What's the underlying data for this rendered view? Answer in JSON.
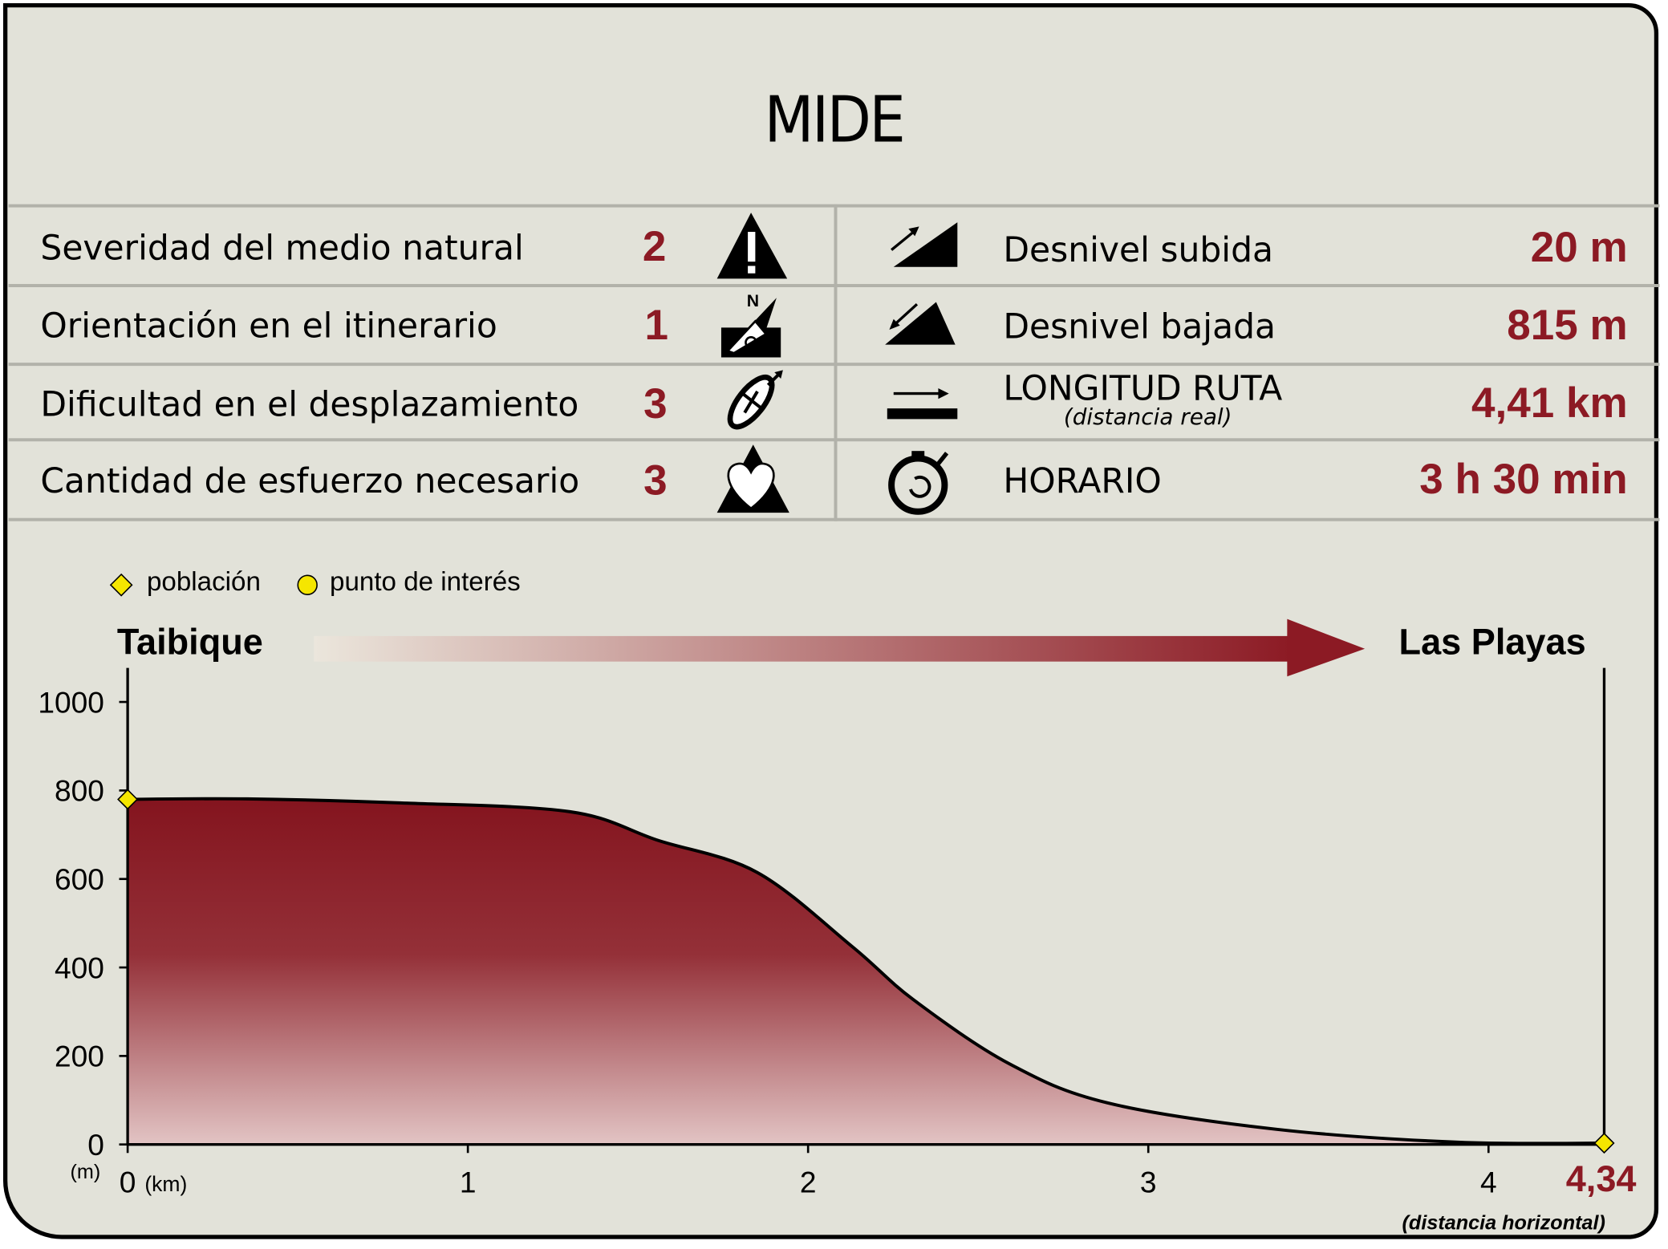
{
  "title": "MIDE",
  "mide": [
    {
      "label": "Severidad del medio natural",
      "value": "2",
      "icon": "warning-mountain-icon"
    },
    {
      "label": "Orientación en el itinerario",
      "value": "1",
      "icon": "compass-orientation-icon"
    },
    {
      "label": "Dificultad en el desplazamiento",
      "value": "3",
      "icon": "footprint-icon"
    },
    {
      "label": "Cantidad de esfuerzo necesario",
      "value": "3",
      "icon": "heart-mountain-icon"
    }
  ],
  "stats": [
    {
      "label": "Desnivel subida",
      "value": "20 m",
      "icon": "ascent-icon"
    },
    {
      "label": "Desnivel bajada",
      "value": "815 m",
      "icon": "descent-icon"
    },
    {
      "label": "LONGITUD RUTA",
      "sublabel": "(distancia real)",
      "value": "4,41 km",
      "icon": "distance-arrow-icon"
    },
    {
      "label": "HORARIO",
      "value": "3 h 30 min",
      "icon": "stopwatch-icon"
    }
  ],
  "legend": {
    "poblacion": "población",
    "punto": "punto de interés"
  },
  "colors": {
    "accent": "#8c1a24",
    "background": "#e2e2d9",
    "marker": "#f5e600"
  },
  "chart_data": {
    "type": "area",
    "start": "Taibique",
    "end": "Las Playas",
    "ylabel": "(m)",
    "xlabel": "(km)",
    "xnote": "(distancia horizontal)",
    "end_distance": "4,34",
    "ylim": [
      0,
      1000
    ],
    "xlim": [
      0,
      4.34
    ],
    "yticks": [
      "0",
      "200",
      "400",
      "600",
      "800",
      "1000"
    ],
    "xticks": [
      "0",
      "1",
      "2",
      "3",
      "4"
    ],
    "x": [
      0,
      0.35,
      0.8,
      1.3,
      1.56,
      1.85,
      2.13,
      2.31,
      2.59,
      2.88,
      3.38,
      3.91,
      4.34
    ],
    "y": [
      780,
      781,
      772,
      752,
      687,
      615,
      447,
      327,
      183,
      94,
      34,
      5,
      3
    ],
    "markers": [
      {
        "x": 0,
        "y": 780,
        "type": "población"
      },
      {
        "x": 4.34,
        "y": 3,
        "type": "población"
      }
    ]
  }
}
